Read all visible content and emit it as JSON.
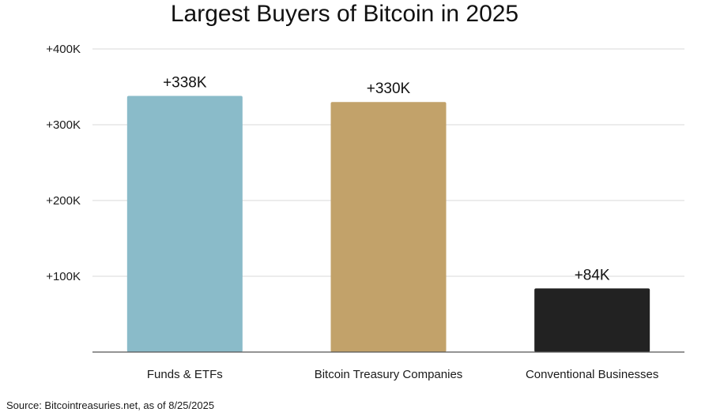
{
  "chart_data": {
    "type": "bar",
    "title": "Largest Buyers of Bitcoin in 2025",
    "categories": [
      "Funds & ETFs",
      "Bitcoin Treasury Companies",
      "Conventional Businesses"
    ],
    "values": [
      338000,
      330000,
      84000
    ],
    "data_labels": [
      "+338K",
      "+330K",
      "+84K"
    ],
    "bar_colors": [
      "#8ABBC9",
      "#C2A26A",
      "#222222"
    ],
    "ylim": [
      0,
      400000
    ],
    "yticks": [
      100000,
      200000,
      300000,
      400000
    ],
    "ytick_labels": [
      "+100K",
      "+200K",
      "+300K",
      "+400K"
    ],
    "xlabel": "",
    "ylabel": "",
    "grid": "horizontal",
    "gridline_color": "#d9d9d9",
    "axis_color": "#555555"
  },
  "source_note": "Source: Bitcointreasuries.net, as of 8/25/2025"
}
